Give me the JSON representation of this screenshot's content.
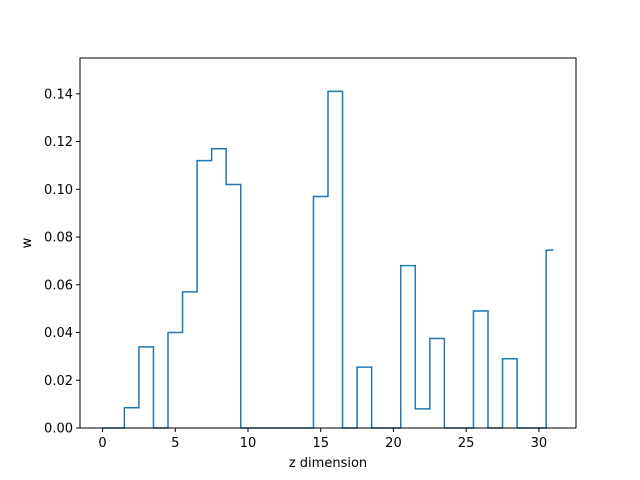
{
  "chart_data": {
    "type": "step",
    "xlabel": "z dimension",
    "ylabel": "w",
    "xlim": [
      -1.55,
      32.55
    ],
    "ylim": [
      0,
      0.155
    ],
    "xticks": [
      0,
      5,
      10,
      15,
      20,
      25,
      30
    ],
    "yticks": [
      0.0,
      0.02,
      0.04,
      0.06,
      0.08,
      0.1,
      0.12,
      0.14
    ],
    "ytick_labels": [
      "0.00",
      "0.02",
      "0.04",
      "0.06",
      "0.08",
      "0.10",
      "0.12",
      "0.14"
    ],
    "step_where": "mid",
    "series": [
      {
        "color": "#1f77b4",
        "x": [
          0,
          1,
          2,
          3,
          4,
          5,
          6,
          7,
          8,
          9,
          10,
          11,
          12,
          13,
          14,
          15,
          16,
          17,
          18,
          19,
          20,
          21,
          22,
          23,
          24,
          25,
          26,
          27,
          28,
          29,
          30,
          31
        ],
        "y": [
          0.0,
          0.0,
          0.0085,
          0.034,
          0.0,
          0.04,
          0.057,
          0.112,
          0.117,
          0.102,
          0.0,
          0.0,
          0.0,
          0.0,
          0.0,
          0.097,
          0.141,
          0.0,
          0.0255,
          0.0,
          0.0,
          0.068,
          0.008,
          0.0375,
          0.0,
          0.0,
          0.049,
          0.0,
          0.029,
          0.0,
          0.0,
          0.0745
        ]
      }
    ],
    "grid": false,
    "legend": false
  }
}
